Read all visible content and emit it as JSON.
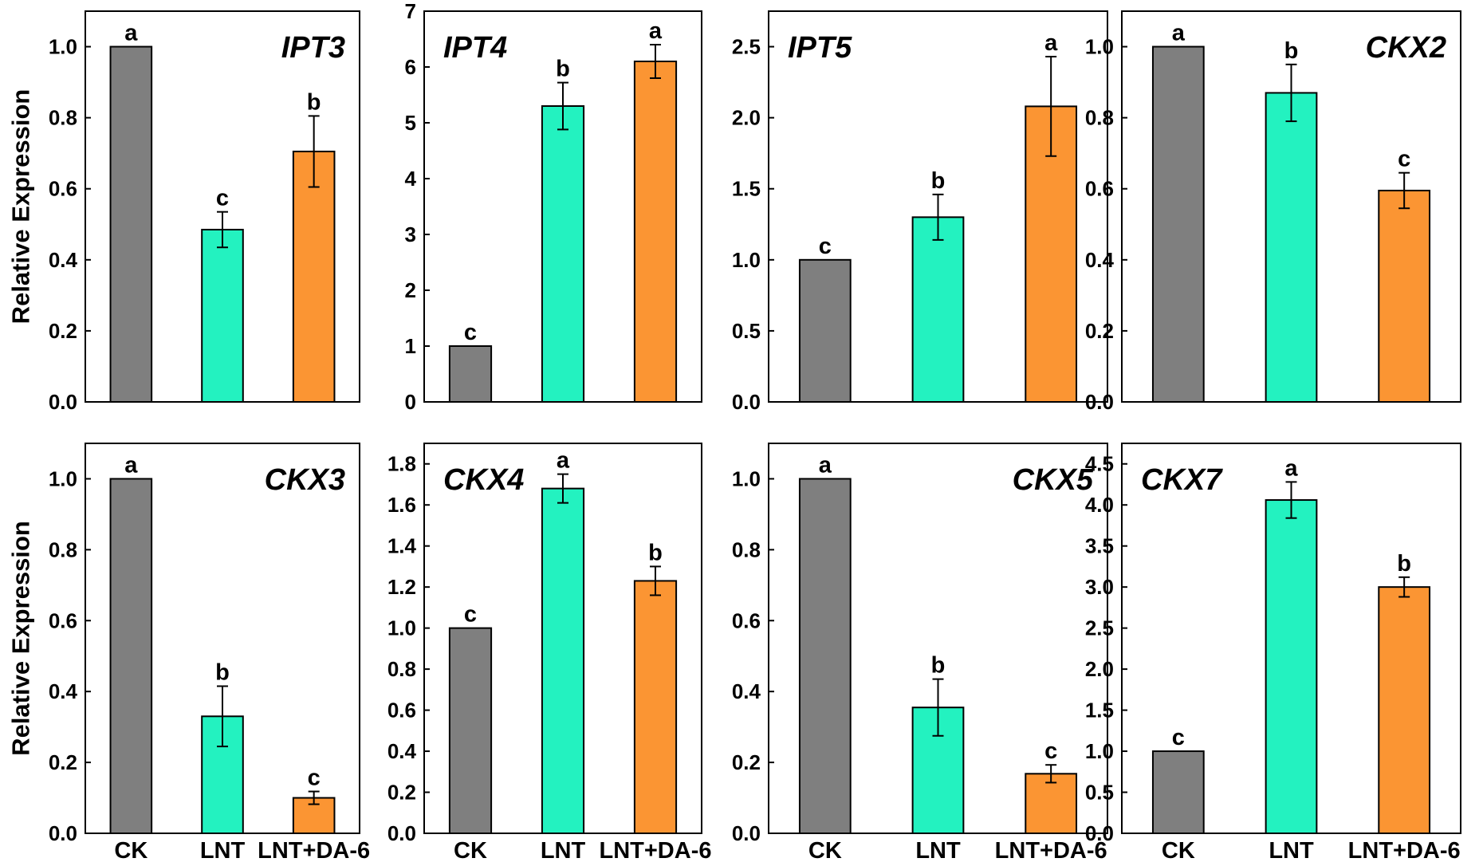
{
  "colors": {
    "CK": "#7f7f7f",
    "LNT": "#23f2c0",
    "LNT+DA-6": "#fb9533"
  },
  "chart_data": [
    {
      "type": "bar",
      "title": "IPT3",
      "title_position": "top-right",
      "categories": [
        "CK",
        "LNT",
        "LNT+DA-6"
      ],
      "values": [
        1.0,
        0.485,
        0.705
      ],
      "errors": [
        0.0,
        0.05,
        0.1
      ],
      "letters": [
        "a",
        "c",
        "b"
      ],
      "ylabel": "Relative Expression",
      "ylim": [
        0,
        1.1
      ],
      "yticks": [
        "0.0",
        "0.2",
        "0.4",
        "0.6",
        "0.8",
        "1.0"
      ],
      "show_xlabels": false
    },
    {
      "type": "bar",
      "title": "IPT4",
      "title_position": "top-left",
      "categories": [
        "CK",
        "LNT",
        "LNT+DA-6"
      ],
      "values": [
        1.0,
        5.3,
        6.1
      ],
      "errors": [
        0.0,
        0.42,
        0.3
      ],
      "letters": [
        "c",
        "b",
        "a"
      ],
      "ylabel": "",
      "ylim": [
        0,
        7
      ],
      "yticks": [
        "0",
        "1",
        "2",
        "3",
        "4",
        "5",
        "6",
        "7"
      ],
      "show_xlabels": false
    },
    {
      "type": "bar",
      "title": "IPT5",
      "title_position": "top-left",
      "categories": [
        "CK",
        "LNT",
        "LNT+DA-6"
      ],
      "values": [
        1.0,
        1.3,
        2.08
      ],
      "errors": [
        0.0,
        0.16,
        0.35
      ],
      "letters": [
        "c",
        "b",
        "a"
      ],
      "ylabel": "",
      "ylim": [
        0,
        2.75
      ],
      "yticks": [
        "0.0",
        "0.5",
        "1.0",
        "1.5",
        "2.0",
        "2.5"
      ],
      "show_xlabels": false
    },
    {
      "type": "bar",
      "title": "CKX2",
      "title_position": "top-right",
      "categories": [
        "CK",
        "LNT",
        "LNT+DA-6"
      ],
      "values": [
        1.0,
        0.87,
        0.595
      ],
      "errors": [
        0.0,
        0.08,
        0.05
      ],
      "letters": [
        "a",
        "b",
        "c"
      ],
      "ylabel": "",
      "ylim": [
        0,
        1.1
      ],
      "yticks": [
        "0.0",
        "0.2",
        "0.4",
        "0.6",
        "0.8",
        "1.0"
      ],
      "show_xlabels": false
    },
    {
      "type": "bar",
      "title": "CKX3",
      "title_position": "top-right",
      "categories": [
        "CK",
        "LNT",
        "LNT+DA-6"
      ],
      "values": [
        1.0,
        0.33,
        0.1
      ],
      "errors": [
        0.0,
        0.085,
        0.018
      ],
      "letters": [
        "a",
        "b",
        "c"
      ],
      "ylabel": "Relative Expression",
      "ylim": [
        0,
        1.1
      ],
      "yticks": [
        "0.0",
        "0.2",
        "0.4",
        "0.6",
        "0.8",
        "1.0"
      ],
      "show_xlabels": true
    },
    {
      "type": "bar",
      "title": "CKX4",
      "title_position": "top-left",
      "categories": [
        "CK",
        "LNT",
        "LNT+DA-6"
      ],
      "values": [
        1.0,
        1.68,
        1.23
      ],
      "errors": [
        0.0,
        0.07,
        0.07
      ],
      "letters": [
        "c",
        "a",
        "b"
      ],
      "ylabel": "",
      "ylim": [
        0,
        1.9
      ],
      "yticks": [
        "0.0",
        "0.2",
        "0.4",
        "0.6",
        "0.8",
        "1.0",
        "1.2",
        "1.4",
        "1.6",
        "1.8"
      ],
      "show_xlabels": true
    },
    {
      "type": "bar",
      "title": "CKX5",
      "title_position": "top-right",
      "categories": [
        "CK",
        "LNT",
        "LNT+DA-6"
      ],
      "values": [
        1.0,
        0.355,
        0.168
      ],
      "errors": [
        0.0,
        0.08,
        0.025
      ],
      "letters": [
        "a",
        "b",
        "c"
      ],
      "ylabel": "",
      "ylim": [
        0,
        1.1
      ],
      "yticks": [
        "0.0",
        "0.2",
        "0.4",
        "0.6",
        "0.8",
        "1.0"
      ],
      "show_xlabels": true
    },
    {
      "type": "bar",
      "title": "CKX7",
      "title_position": "top-left",
      "categories": [
        "CK",
        "LNT",
        "LNT+DA-6"
      ],
      "values": [
        1.0,
        4.06,
        3.0
      ],
      "errors": [
        0.0,
        0.22,
        0.12
      ],
      "letters": [
        "c",
        "a",
        "b"
      ],
      "ylabel": "",
      "ylim": [
        0,
        4.75
      ],
      "yticks": [
        "0.0",
        "0.5",
        "1.0",
        "1.5",
        "2.0",
        "2.5",
        "3.0",
        "3.5",
        "4.0",
        "4.5"
      ],
      "show_xlabels": true
    }
  ]
}
